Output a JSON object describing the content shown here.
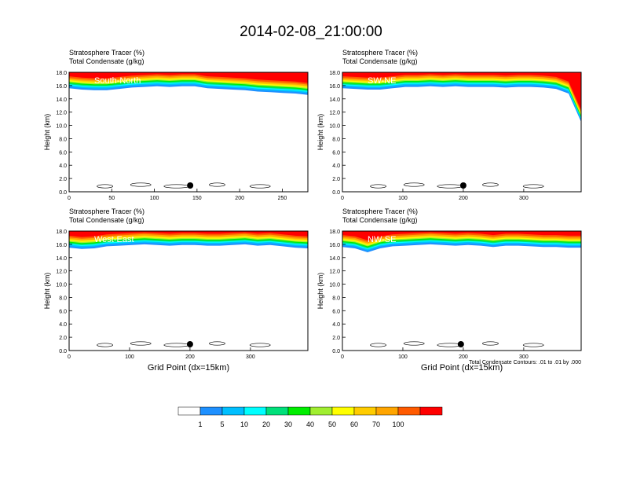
{
  "title": "2014-02-08_21:00:00",
  "field_labels": {
    "tracer": "Stratosphere Tracer   (%)",
    "condensate": "Total Condensate   (g/kg)"
  },
  "ylabel": "Height (km)",
  "xlabel": "Grid Point (dx=15km)",
  "contour_note": "Total Condensate Contours: .01 to .01 by .000",
  "chart_data": [
    {
      "type": "heatmap",
      "panel": "South-North",
      "x_ticks": [
        0,
        50,
        100,
        150,
        200,
        250
      ],
      "xlim": [
        0,
        280
      ],
      "y_ticks": [
        "0.0",
        "2.0",
        "4.0",
        "6.0",
        "8.0",
        "10.0",
        "12.0",
        "14.0",
        "16.0",
        "18.0"
      ],
      "ylim": [
        0,
        18
      ],
      "marker_x": 142,
      "tropopause_km": [
        15.6,
        15.4,
        15.3,
        15.3,
        15.5,
        15.7,
        15.8,
        15.9,
        15.8,
        15.9,
        15.9,
        15.6,
        15.5,
        15.4,
        15.3,
        15.1,
        15.0,
        14.9,
        14.8,
        14.6
      ]
    },
    {
      "type": "heatmap",
      "panel": "SW-NE",
      "x_ticks": [
        0,
        100,
        200,
        300
      ],
      "xlim": [
        0,
        395
      ],
      "y_ticks": [
        "0.0",
        "2.0",
        "4.0",
        "6.0",
        "8.0",
        "10.0",
        "12.0",
        "14.0",
        "16.0",
        "18.0"
      ],
      "ylim": [
        0,
        18
      ],
      "marker_x": 200,
      "tropopause_km": [
        15.6,
        15.5,
        15.4,
        15.4,
        15.6,
        15.8,
        15.8,
        15.9,
        15.8,
        15.9,
        15.8,
        15.8,
        15.8,
        15.7,
        15.8,
        15.8,
        15.7,
        15.5,
        14.8,
        10.5
      ]
    },
    {
      "type": "heatmap",
      "panel": "West-East",
      "x_ticks": [
        0,
        100,
        200,
        300
      ],
      "xlim": [
        0,
        395
      ],
      "y_ticks": [
        "0.0",
        "2.0",
        "4.0",
        "6.0",
        "8.0",
        "10.0",
        "12.0",
        "14.0",
        "16.0",
        "18.0"
      ],
      "ylim": [
        0,
        18
      ],
      "marker_x": 200,
      "tropopause_km": [
        15.5,
        15.3,
        15.4,
        15.7,
        15.8,
        15.9,
        16.0,
        15.9,
        15.8,
        15.9,
        15.9,
        15.8,
        15.8,
        15.9,
        16.0,
        15.8,
        15.9,
        15.7,
        15.5,
        15.4
      ]
    },
    {
      "type": "heatmap",
      "panel": "NW-SE",
      "x_ticks": [
        0,
        100,
        200,
        300
      ],
      "xlim": [
        0,
        395
      ],
      "y_ticks": [
        "0.0",
        "2.0",
        "4.0",
        "6.0",
        "8.0",
        "10.0",
        "12.0",
        "14.0",
        "16.0",
        "18.0"
      ],
      "ylim": [
        0,
        18
      ],
      "marker_x": 196,
      "tropopause_km": [
        15.6,
        15.4,
        14.8,
        15.4,
        15.7,
        15.8,
        15.9,
        16.0,
        15.9,
        15.8,
        15.9,
        15.8,
        15.6,
        15.8,
        15.8,
        15.7,
        15.6,
        15.6,
        15.5,
        15.5
      ]
    }
  ],
  "colorbar": {
    "labels": [
      "1",
      "5",
      "10",
      "20",
      "30",
      "40",
      "50",
      "60",
      "70",
      "100"
    ],
    "colors": [
      "#ffffff",
      "#1e90ff",
      "#00bfff",
      "#00ffff",
      "#00e07a",
      "#00ee00",
      "#a0ee30",
      "#ffff00",
      "#ffcc00",
      "#ffa500",
      "#ff5a00",
      "#ff0000"
    ]
  }
}
